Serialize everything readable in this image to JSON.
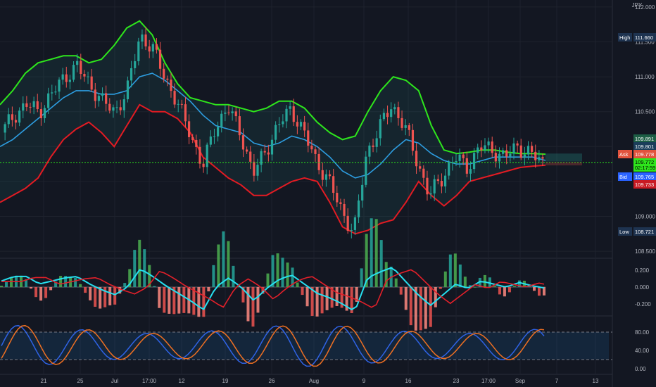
{
  "currency": "JPY",
  "colors": {
    "background": "#131722",
    "up": "#26a69a",
    "down": "#ef5350",
    "bb_upper": "#2ee61c",
    "bb_lower": "#e31b23",
    "bb_basis": "#2d9de0",
    "macd_line": "#26e0f0",
    "signal_line": "#e3202a",
    "stoch_k": "#2f63e6",
    "stoch_d": "#f07022"
  },
  "price_axis": {
    "ticks": [
      "112.000",
      "111.500",
      "111.000",
      "110.500",
      "110.000",
      "109.500",
      "109.000",
      "108.500"
    ],
    "range": [
      108.42,
      112.1
    ]
  },
  "tags": {
    "high": {
      "label": "High",
      "value": "111.660"
    },
    "low": {
      "label": "Low",
      "value": "108.721"
    },
    "upper_band": {
      "value": "109.891"
    },
    "basis": {
      "value": "109.801"
    },
    "ask": {
      "label": "Ask",
      "value": "109.778"
    },
    "last": {
      "value": "109.772",
      "countdown": "02:17:59"
    },
    "bid": {
      "label": "Bid",
      "value": "109.765"
    },
    "lower_band": {
      "value": "109.733"
    }
  },
  "macd_axis": {
    "ticks": [
      "0.200",
      "0.000",
      "-0.200"
    ]
  },
  "stoch_axis": {
    "ticks": [
      "80.00",
      "40.00",
      "0.00"
    ]
  },
  "time_axis": {
    "labels": [
      "21",
      "25",
      "Jul",
      "17:00",
      "12",
      "19",
      "26",
      "Aug",
      "9",
      "16",
      "23",
      "17:00",
      "Sep",
      "7",
      "13"
    ]
  },
  "chart_data": {
    "type": "line",
    "series": [
      {
        "values": [
          110.2,
          110.45,
          110.6,
          110.5,
          110.75,
          111.0,
          111.15,
          110.9,
          110.65,
          110.5,
          110.8,
          111.6,
          111.4,
          111.0,
          110.6,
          110.2,
          109.7,
          110.3,
          110.55,
          110.2,
          109.6,
          109.95,
          110.3,
          110.55,
          110.2,
          109.8,
          109.5,
          109.1,
          108.75,
          109.9,
          110.25,
          110.6,
          110.3,
          109.8,
          109.3,
          109.55,
          109.85,
          109.7,
          110.0,
          109.95,
          109.85,
          110.0,
          109.9,
          109.772
        ]
      },
      {
        "values": [
          110.0,
          110.1,
          110.25,
          110.4,
          110.55,
          110.7,
          110.8,
          110.8,
          110.75,
          110.75,
          110.8,
          111.0,
          111.05,
          110.95,
          110.8,
          110.65,
          110.45,
          110.3,
          110.25,
          110.2,
          110.05,
          110.0,
          110.05,
          110.15,
          110.1,
          110.0,
          109.85,
          109.65,
          109.55,
          109.6,
          109.75,
          109.95,
          110.1,
          110.05,
          109.9,
          109.8,
          109.75,
          109.75,
          109.8,
          109.85,
          109.85,
          109.85,
          109.85,
          109.801
        ]
      },
      {
        "values": [
          110.6,
          110.8,
          111.05,
          111.2,
          111.25,
          111.3,
          111.3,
          111.2,
          111.25,
          111.45,
          111.7,
          111.8,
          111.6,
          111.2,
          110.9,
          110.7,
          110.65,
          110.6,
          110.6,
          110.55,
          110.5,
          110.55,
          110.65,
          110.65,
          110.55,
          110.35,
          110.2,
          110.1,
          110.15,
          110.5,
          110.8,
          111.0,
          110.95,
          110.8,
          110.3,
          109.95,
          109.9,
          109.92,
          109.95,
          109.95,
          109.92,
          109.9,
          109.9,
          109.891
        ]
      },
      {
        "values": [
          109.2,
          109.3,
          109.4,
          109.55,
          109.85,
          110.1,
          110.25,
          110.35,
          110.2,
          110.0,
          110.3,
          110.6,
          110.5,
          110.5,
          110.4,
          110.2,
          109.85,
          109.7,
          109.55,
          109.45,
          109.3,
          109.3,
          109.4,
          109.5,
          109.55,
          109.5,
          109.2,
          108.85,
          108.75,
          108.8,
          108.9,
          108.95,
          109.2,
          109.5,
          109.3,
          109.15,
          109.3,
          109.5,
          109.55,
          109.6,
          109.65,
          109.7,
          109.72,
          109.733
        ]
      }
    ],
    "ylim": [
      108.42,
      112.1
    ]
  }
}
